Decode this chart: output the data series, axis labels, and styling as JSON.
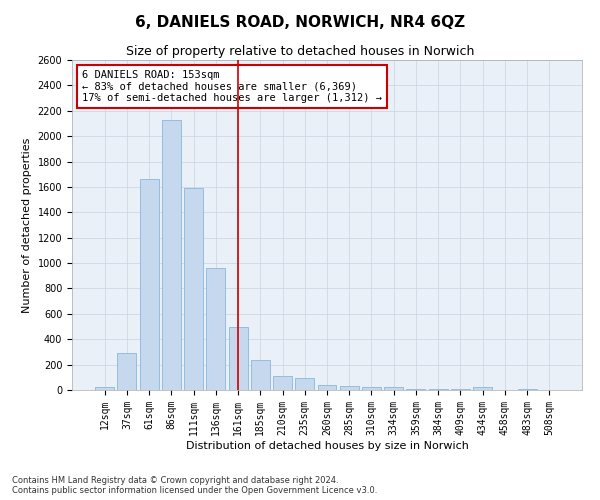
{
  "title": "6, DANIELS ROAD, NORWICH, NR4 6QZ",
  "subtitle": "Size of property relative to detached houses in Norwich",
  "xlabel": "Distribution of detached houses by size in Norwich",
  "ylabel": "Number of detached properties",
  "categories": [
    "12sqm",
    "37sqm",
    "61sqm",
    "86sqm",
    "111sqm",
    "136sqm",
    "161sqm",
    "185sqm",
    "210sqm",
    "235sqm",
    "260sqm",
    "285sqm",
    "310sqm",
    "334sqm",
    "359sqm",
    "384sqm",
    "409sqm",
    "434sqm",
    "458sqm",
    "483sqm",
    "508sqm"
  ],
  "values": [
    25,
    290,
    1660,
    2130,
    1590,
    960,
    500,
    240,
    110,
    95,
    40,
    35,
    25,
    20,
    10,
    8,
    5,
    20,
    3,
    5,
    3
  ],
  "bar_color": "#c5d8ed",
  "bar_edge_color": "#7aaed6",
  "reference_line_x": 6,
  "reference_line_color": "#cc0000",
  "annotation_text": "6 DANIELS ROAD: 153sqm\n← 83% of detached houses are smaller (6,369)\n17% of semi-detached houses are larger (1,312) →",
  "annotation_box_color": "#ffffff",
  "annotation_box_edge_color": "#cc0000",
  "ylim": [
    0,
    2600
  ],
  "yticks": [
    0,
    200,
    400,
    600,
    800,
    1000,
    1200,
    1400,
    1600,
    1800,
    2000,
    2200,
    2400,
    2600
  ],
  "footer_line1": "Contains HM Land Registry data © Crown copyright and database right 2024.",
  "footer_line2": "Contains public sector information licensed under the Open Government Licence v3.0.",
  "background_color": "#ffffff",
  "grid_color": "#c8d4e3",
  "title_fontsize": 11,
  "subtitle_fontsize": 9,
  "axis_label_fontsize": 8,
  "tick_fontsize": 7,
  "annotation_fontsize": 7.5,
  "footer_fontsize": 6
}
